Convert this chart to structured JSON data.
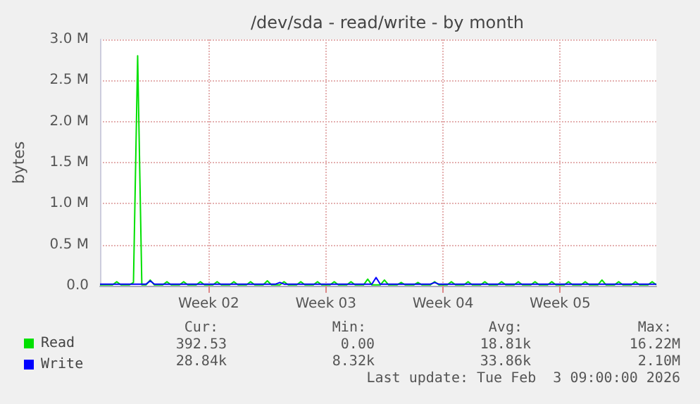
{
  "chart_data": {
    "type": "line",
    "title": "/dev/sda - read/write - by month",
    "ylabel": "bytes",
    "categories": [
      null,
      null,
      null,
      null,
      null,
      null,
      null,
      null,
      null,
      null,
      null,
      null,
      null,
      null,
      null,
      null,
      null,
      null,
      null,
      null,
      null,
      null,
      null,
      null,
      null,
      null,
      "Week 02",
      null,
      null,
      null,
      null,
      null,
      null,
      null,
      null,
      null,
      null,
      null,
      null,
      null,
      null,
      null,
      null,
      null,
      null,
      null,
      null,
      null,
      null,
      null,
      null,
      null,
      null,
      null,
      "Week 03",
      null,
      null,
      null,
      null,
      null,
      null,
      null,
      null,
      null,
      null,
      null,
      null,
      null,
      null,
      null,
      null,
      null,
      null,
      null,
      null,
      null,
      null,
      null,
      null,
      null,
      null,
      null,
      "Week 04",
      null,
      null,
      null,
      null,
      null,
      null,
      null,
      null,
      null,
      null,
      null,
      null,
      null,
      null,
      null,
      null,
      null,
      null,
      null,
      null,
      null,
      null,
      null,
      null,
      null,
      null,
      null,
      "Week 05",
      null,
      null,
      null,
      null,
      null,
      null,
      null,
      null,
      null,
      null,
      null,
      null,
      null,
      null,
      null,
      null,
      null,
      null,
      null,
      null,
      null,
      null,
      null
    ],
    "ylim": [
      0,
      3000000
    ],
    "yticks": [
      {
        "value": 0,
        "label": "0.0"
      },
      {
        "value": 500000,
        "label": "0.5 M"
      },
      {
        "value": 1000000,
        "label": "1.0 M"
      },
      {
        "value": 1500000,
        "label": "1.5 M"
      },
      {
        "value": 2000000,
        "label": "2.0 M"
      },
      {
        "value": 2500000,
        "label": "2.5 M"
      },
      {
        "value": 3000000,
        "label": "3.0 M"
      }
    ],
    "series": [
      {
        "name": "Read",
        "color": "#00e000",
        "values": [
          10000,
          10000,
          10000,
          10000,
          50000,
          10000,
          10000,
          10000,
          40000,
          2800000,
          10000,
          10000,
          70000,
          10000,
          10000,
          10000,
          50000,
          10000,
          10000,
          10000,
          50000,
          10000,
          10000,
          10000,
          50000,
          10000,
          10000,
          10000,
          50000,
          10000,
          10000,
          10000,
          50000,
          10000,
          10000,
          10000,
          50000,
          10000,
          10000,
          10000,
          60000,
          10000,
          10000,
          10000,
          50000,
          10000,
          10000,
          10000,
          50000,
          10000,
          10000,
          10000,
          50000,
          10000,
          10000,
          10000,
          50000,
          10000,
          10000,
          10000,
          50000,
          10000,
          10000,
          10000,
          80000,
          10000,
          10000,
          10000,
          70000,
          10000,
          10000,
          10000,
          40000,
          10000,
          10000,
          10000,
          40000,
          10000,
          10000,
          10000,
          50000,
          10000,
          10000,
          10000,
          50000,
          10000,
          10000,
          10000,
          50000,
          10000,
          10000,
          10000,
          50000,
          10000,
          10000,
          10000,
          50000,
          10000,
          10000,
          10000,
          50000,
          10000,
          10000,
          10000,
          50000,
          10000,
          10000,
          10000,
          50000,
          10000,
          10000,
          10000,
          50000,
          10000,
          10000,
          10000,
          50000,
          10000,
          10000,
          10000,
          70000,
          10000,
          10000,
          10000,
          50000,
          10000,
          10000,
          10000,
          50000,
          10000,
          10000,
          10000,
          50000,
          10000
        ]
      },
      {
        "name": "Write",
        "color": "#0000ff",
        "values": [
          20000,
          20000,
          20000,
          20000,
          20000,
          20000,
          20000,
          20000,
          20000,
          20000,
          20000,
          20000,
          60000,
          20000,
          20000,
          20000,
          20000,
          20000,
          20000,
          20000,
          20000,
          20000,
          20000,
          20000,
          20000,
          20000,
          20000,
          20000,
          20000,
          20000,
          20000,
          20000,
          20000,
          20000,
          20000,
          20000,
          20000,
          20000,
          20000,
          20000,
          20000,
          20000,
          20000,
          40000,
          20000,
          20000,
          20000,
          20000,
          20000,
          20000,
          20000,
          20000,
          20000,
          20000,
          20000,
          20000,
          20000,
          20000,
          20000,
          20000,
          20000,
          20000,
          20000,
          20000,
          20000,
          20000,
          100000,
          20000,
          20000,
          20000,
          20000,
          20000,
          20000,
          20000,
          20000,
          20000,
          20000,
          20000,
          20000,
          20000,
          40000,
          20000,
          20000,
          20000,
          20000,
          20000,
          20000,
          20000,
          20000,
          20000,
          20000,
          20000,
          20000,
          20000,
          20000,
          20000,
          20000,
          20000,
          20000,
          20000,
          20000,
          20000,
          20000,
          20000,
          20000,
          20000,
          20000,
          20000,
          20000,
          20000,
          20000,
          20000,
          20000,
          20000,
          20000,
          20000,
          20000,
          20000,
          20000,
          20000,
          20000,
          20000,
          20000,
          20000,
          20000,
          20000,
          20000,
          20000,
          20000,
          20000,
          20000,
          20000,
          20000,
          20000
        ]
      }
    ],
    "grid": true,
    "legend": "bottom left",
    "annotations": [
      "Cur:",
      "Min:",
      "Avg:",
      "Max:",
      "392.53",
      "0.00",
      "18.81k",
      "16.22M",
      "28.84k",
      "8.32k",
      "33.86k",
      "2.10M",
      "Last update: Tue Feb  3 09:00:00 2026"
    ]
  }
}
